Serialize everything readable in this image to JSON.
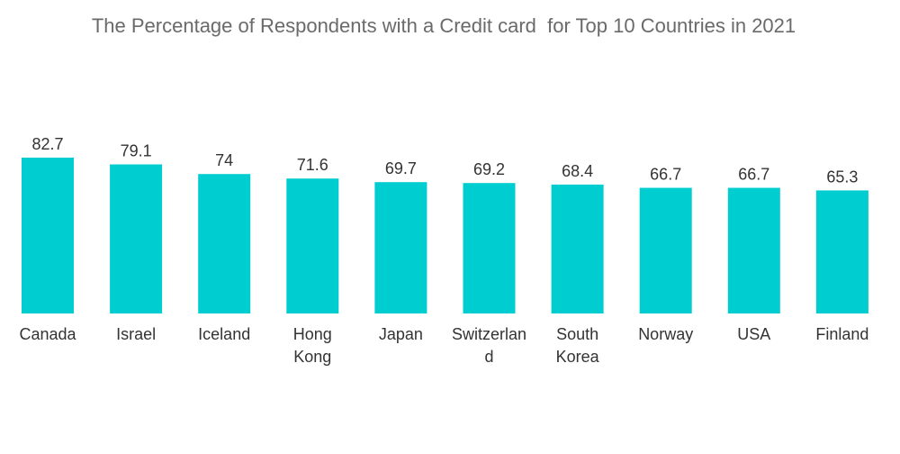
{
  "chart_data": {
    "type": "bar",
    "title": "The Percentage of Respondents with a Credit card  for Top 10 Countries in 2021",
    "xlabel": "",
    "ylabel": "",
    "ylim": [
      0,
      82.7
    ],
    "grid": false,
    "legend": "none",
    "color": "#00cdd0",
    "categories": [
      "Canada",
      "Israel",
      "Iceland",
      "Hong Kong",
      "Japan",
      "Switzerland",
      "South Korea",
      "Norway",
      "USA",
      "Finland"
    ],
    "category_lines": [
      [
        "Canada"
      ],
      [
        "Israel"
      ],
      [
        "Iceland"
      ],
      [
        "Hong",
        "Kong"
      ],
      [
        "Japan"
      ],
      [
        "Switzerlan",
        "d"
      ],
      [
        "South",
        "Korea"
      ],
      [
        "Norway"
      ],
      [
        "USA"
      ],
      [
        "Finland"
      ]
    ],
    "values": [
      82.7,
      79.1,
      74,
      71.6,
      69.7,
      69.2,
      68.4,
      66.7,
      66.7,
      65.3
    ],
    "value_labels": [
      "82.7",
      "79.1",
      "74",
      "71.6",
      "69.7",
      "69.2",
      "68.4",
      "66.7",
      "66.7",
      "65.3"
    ]
  }
}
